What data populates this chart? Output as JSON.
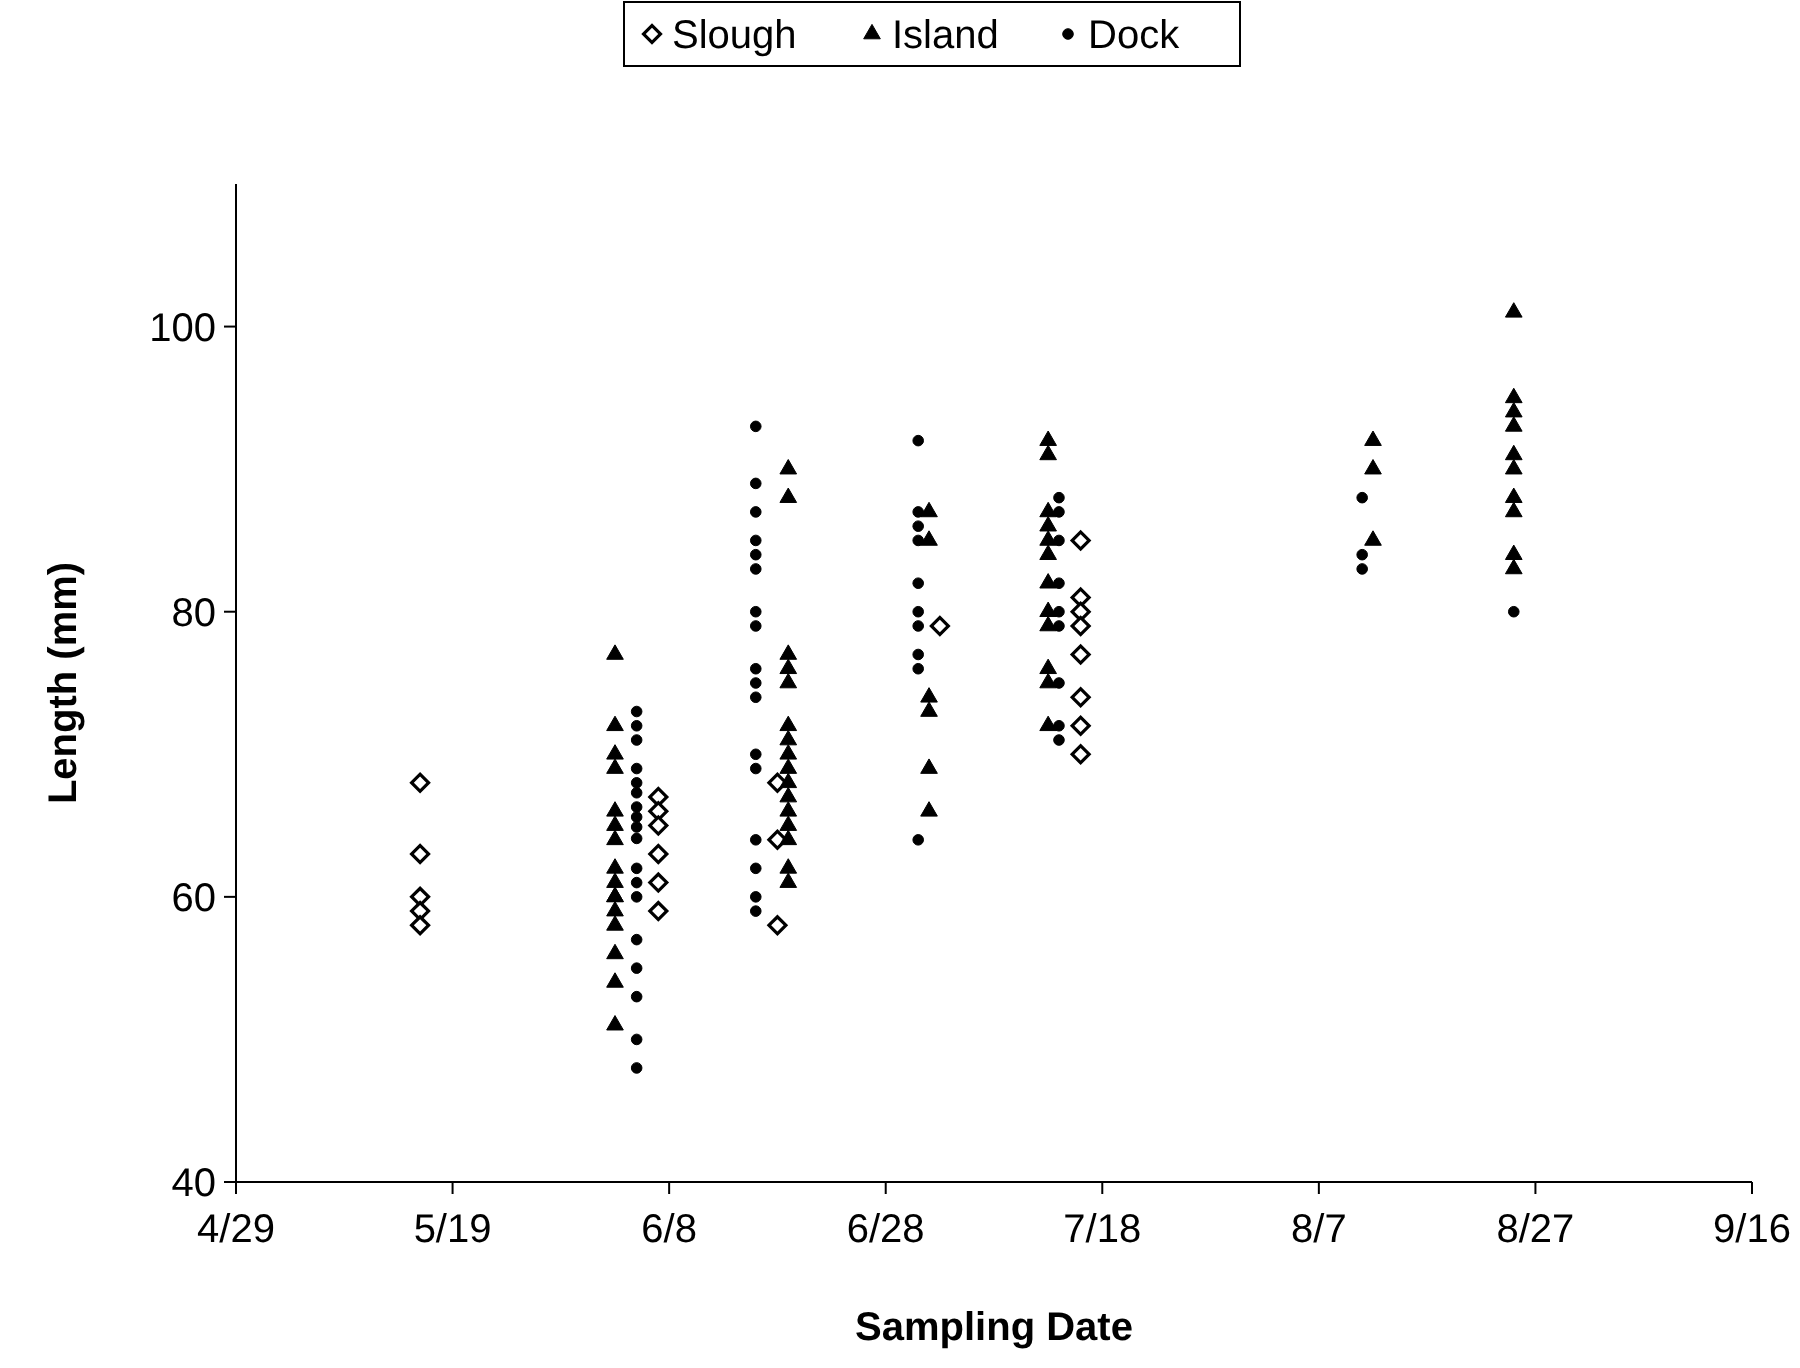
{
  "chart_data": {
    "type": "scatter",
    "xlabel": "Sampling Date",
    "ylabel": "Length (mm)",
    "xlim": [
      "--04-29",
      "--09-16"
    ],
    "xticks": [
      {
        "value": "--04-29",
        "label": "4/29"
      },
      {
        "value": "--05-19",
        "label": "5/19"
      },
      {
        "value": "--06-08",
        "label": "6/8"
      },
      {
        "value": "--06-28",
        "label": "6/28"
      },
      {
        "value": "--07-18",
        "label": "7/18"
      },
      {
        "value": "--08-07",
        "label": "8/7"
      },
      {
        "value": "--08-27",
        "label": "8/27"
      },
      {
        "value": "--09-16",
        "label": "9/16"
      }
    ],
    "ylim": [
      40,
      110
    ],
    "yticks": [
      40,
      60,
      80,
      100
    ],
    "grid": false,
    "legend": "top",
    "series": [
      {
        "name": "Slough",
        "color": "#000000",
        "marker": "diamond",
        "x": [
          "--05-16",
          "--05-16",
          "--05-16",
          "--05-16",
          "--05-16",
          "--06-07",
          "--06-07",
          "--06-07",
          "--06-07",
          "--06-07",
          "--06-07",
          "--06-18",
          "--06-18",
          "--06-18",
          "--07-03",
          "--07-16",
          "--07-16",
          "--07-16",
          "--07-16",
          "--07-16",
          "--07-16",
          "--07-16",
          "--07-16"
        ],
        "values": [
          68,
          63,
          60,
          59,
          58,
          67,
          66,
          65,
          63,
          61,
          59,
          68,
          64,
          58,
          79,
          85,
          81,
          80,
          79,
          77,
          74,
          72,
          70
        ]
      },
      {
        "name": "Island",
        "color": "#000000",
        "marker": "triangle",
        "x": [
          "--06-03",
          "--06-03",
          "--06-03",
          "--06-03",
          "--06-03",
          "--06-03",
          "--06-03",
          "--06-03",
          "--06-03",
          "--06-03",
          "--06-03",
          "--06-03",
          "--06-03",
          "--06-03",
          "--06-03",
          "--06-03",
          "--06-19",
          "--06-19",
          "--06-19",
          "--06-19",
          "--06-19",
          "--06-19",
          "--06-19",
          "--06-19",
          "--06-19",
          "--06-19",
          "--06-19",
          "--06-19",
          "--06-19",
          "--06-19",
          "--06-19",
          "--06-19",
          "--07-02",
          "--07-02",
          "--07-02",
          "--07-02",
          "--07-02",
          "--07-02",
          "--07-13",
          "--07-13",
          "--07-13",
          "--07-13",
          "--07-13",
          "--07-13",
          "--07-13",
          "--07-13",
          "--07-13",
          "--07-13",
          "--07-13",
          "--07-13",
          "--08-12",
          "--08-12",
          "--08-12",
          "--08-25",
          "--08-25",
          "--08-25",
          "--08-25",
          "--08-25",
          "--08-25",
          "--08-25",
          "--08-25",
          "--08-25",
          "--08-25"
        ],
        "values": [
          77,
          72,
          70,
          69,
          66,
          65,
          64,
          62,
          61,
          60,
          60,
          59,
          58,
          56,
          54,
          51,
          90,
          88,
          77,
          76,
          75,
          72,
          71,
          70,
          69,
          68,
          67,
          66,
          65,
          64,
          62,
          61,
          87,
          85,
          74,
          73,
          69,
          66,
          92,
          91,
          87,
          86,
          85,
          84,
          82,
          80,
          79,
          76,
          75,
          72,
          92,
          90,
          85,
          101,
          95,
          94,
          93,
          91,
          90,
          88,
          87,
          84,
          83
        ]
      },
      {
        "name": "Dock",
        "color": "#000000",
        "marker": "circle",
        "x": [
          "--06-05",
          "--06-05",
          "--06-05",
          "--06-05",
          "--06-05",
          "--06-05",
          "--06-05",
          "--06-05",
          "--06-05",
          "--06-05",
          "--06-05",
          "--06-05",
          "--06-05",
          "--06-05",
          "--06-05",
          "--06-05",
          "--06-05",
          "--06-05",
          "--06-16",
          "--06-16",
          "--06-16",
          "--06-16",
          "--06-16",
          "--06-16",
          "--06-16",
          "--06-16",
          "--06-16",
          "--06-16",
          "--06-16",
          "--06-16",
          "--06-16",
          "--06-16",
          "--06-16",
          "--06-16",
          "--06-16",
          "--07-01",
          "--07-01",
          "--07-01",
          "--07-01",
          "--07-01",
          "--07-01",
          "--07-01",
          "--07-01",
          "--07-01",
          "--07-01",
          "--07-14",
          "--07-14",
          "--07-14",
          "--07-14",
          "--07-14",
          "--07-14",
          "--07-14",
          "--07-14",
          "--07-14",
          "--08-11",
          "--08-11",
          "--08-11",
          "--08-25"
        ],
        "values": [
          73,
          72,
          71,
          69,
          68,
          67.3,
          66.3,
          65.6,
          64.9,
          64.1,
          62,
          61,
          60,
          57,
          55,
          53,
          50,
          48,
          93,
          89,
          87,
          85,
          84,
          83,
          80,
          79,
          76,
          75,
          74,
          70,
          69,
          64,
          62,
          60,
          59,
          92,
          87,
          86,
          85,
          82,
          80,
          79,
          77,
          76,
          64,
          88,
          87,
          85,
          82,
          80,
          79,
          75,
          72,
          71,
          88,
          84,
          83,
          80
        ]
      }
    ]
  }
}
